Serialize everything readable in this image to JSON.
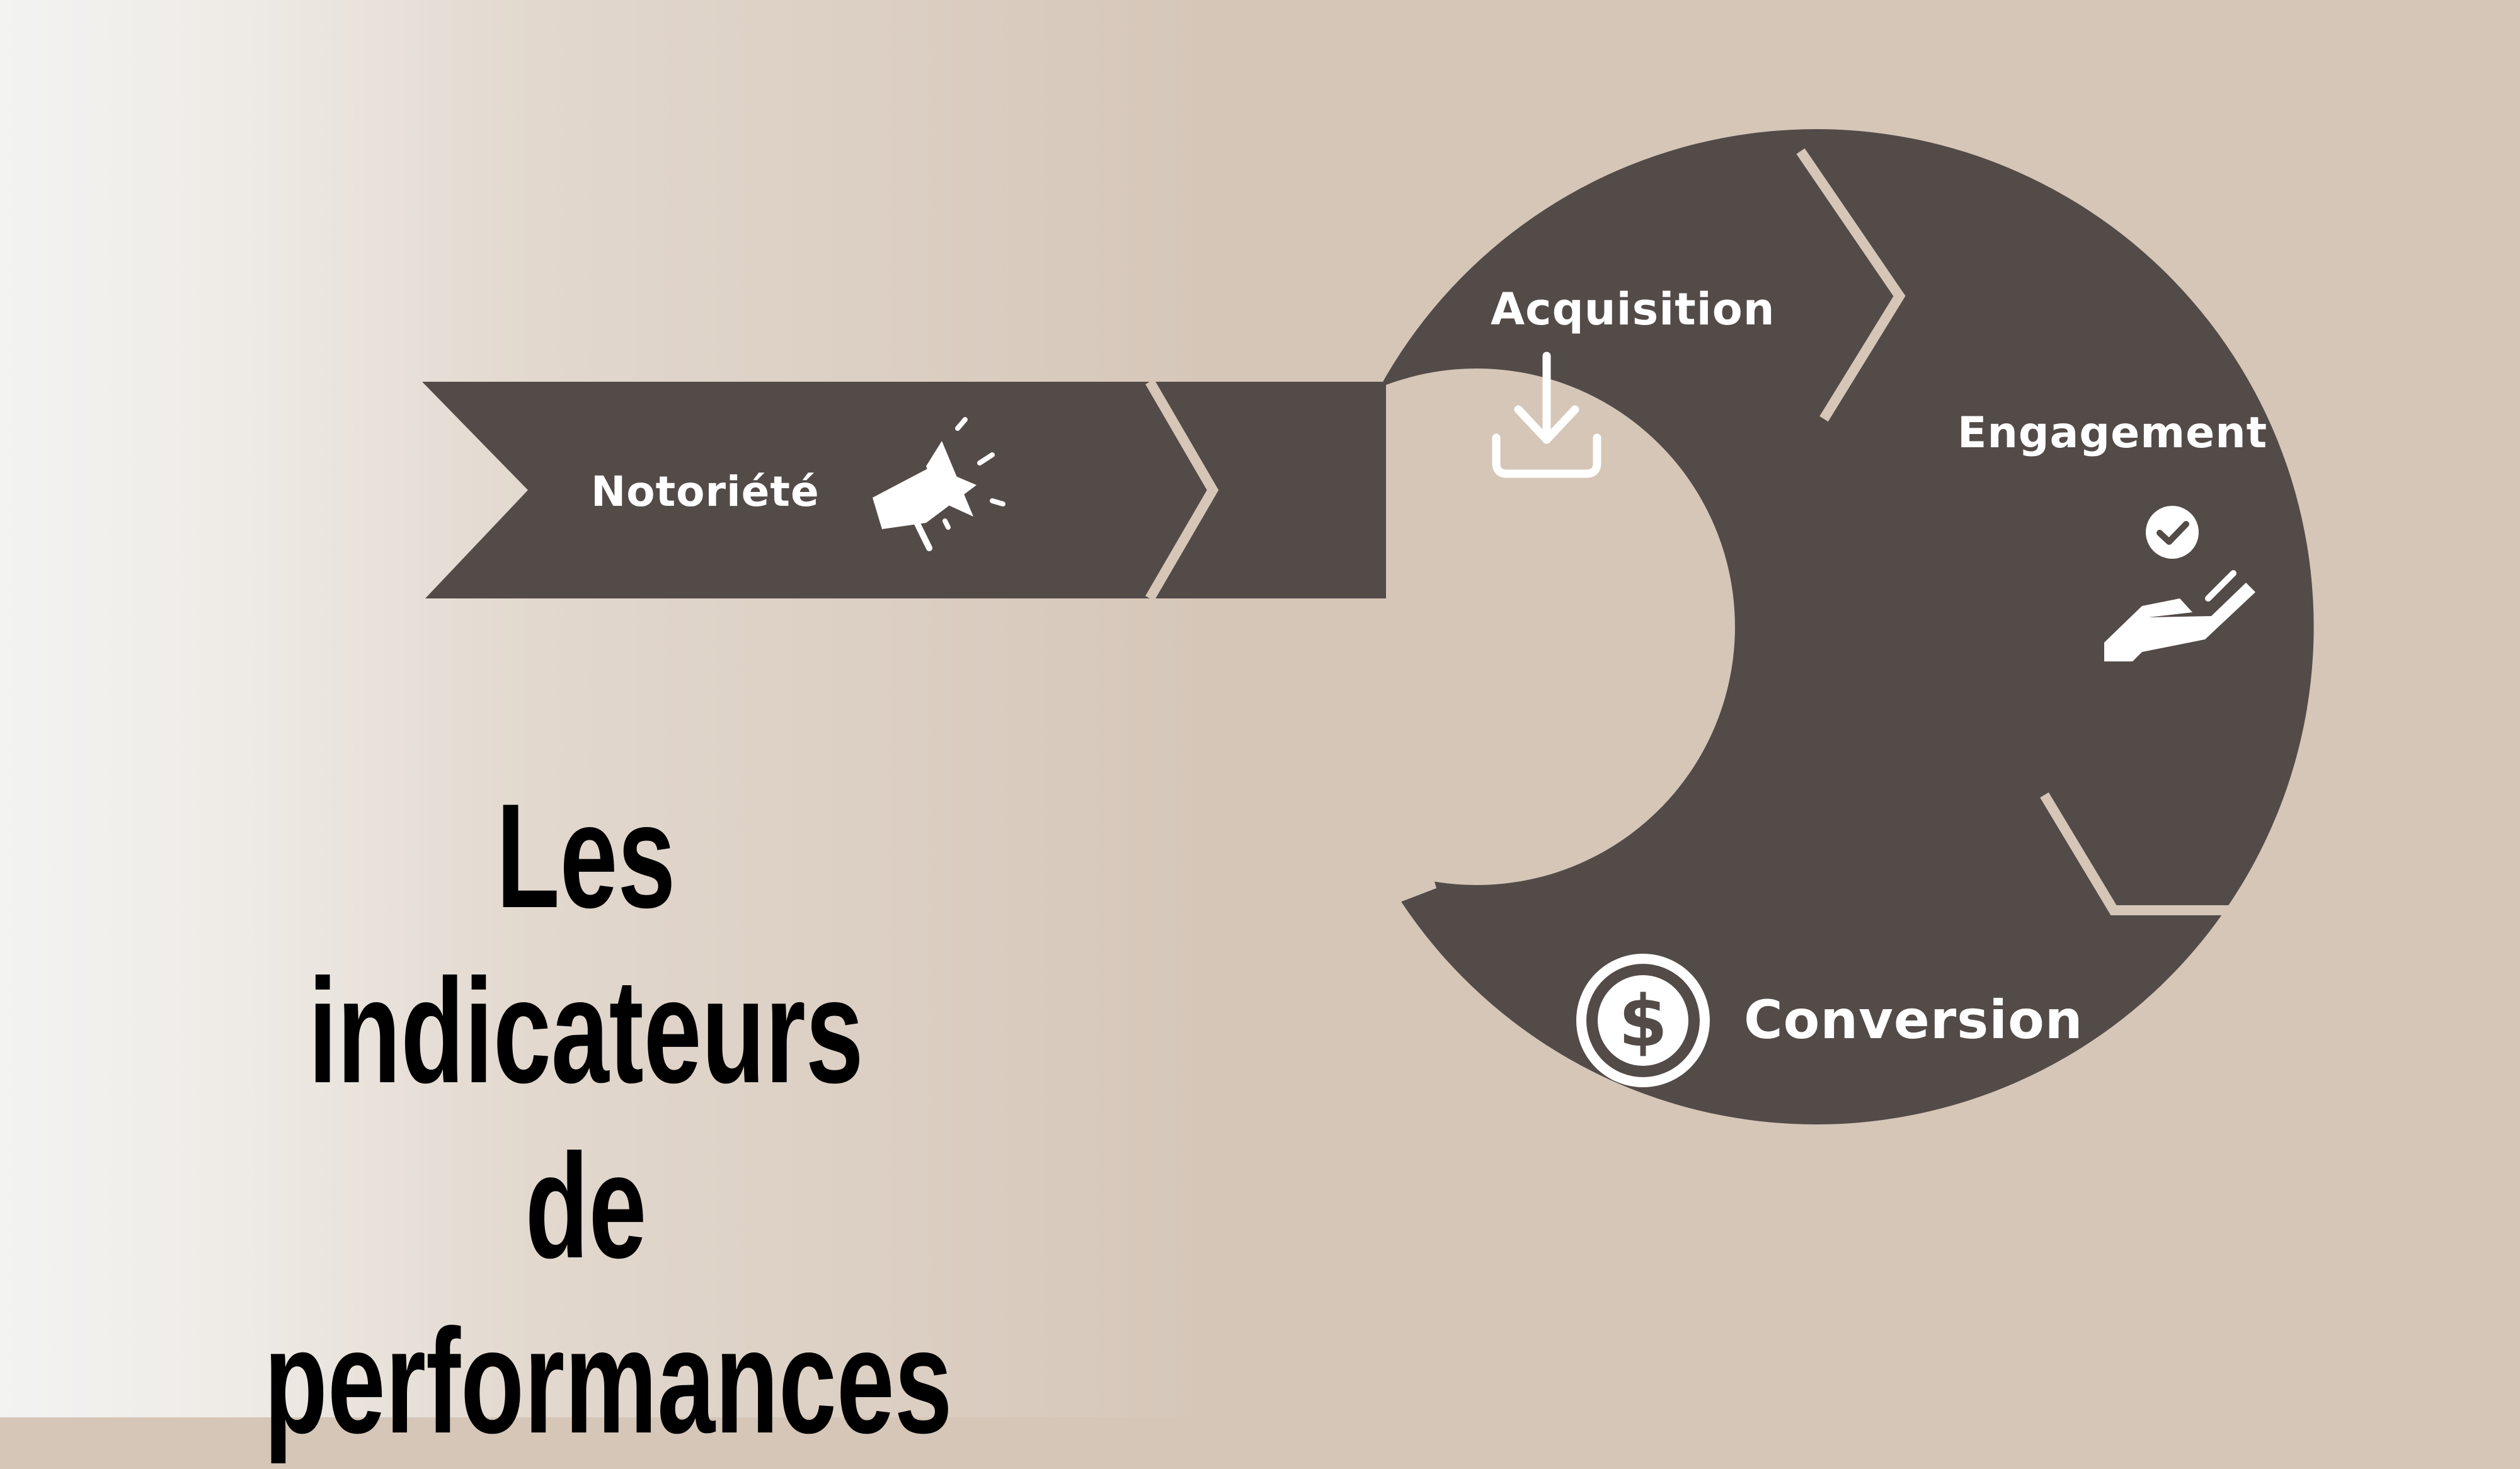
{
  "title": {
    "line1": "Les indicateurs",
    "line2": "de",
    "line3": "performances"
  },
  "stages": [
    {
      "label": "Notoriété",
      "icon": "megaphone-icon"
    },
    {
      "label": "Acquisition",
      "icon": "download-icon"
    },
    {
      "label": "Engagement",
      "icon": "hand-check-icon"
    },
    {
      "label": "Conversion",
      "icon": "dollar-coin-icon"
    }
  ],
  "colors": {
    "shape": "#534b48",
    "background": "#d5c6b8",
    "separator": "#d5c6b8",
    "text_light": "#ffffff",
    "title": "#000000"
  }
}
